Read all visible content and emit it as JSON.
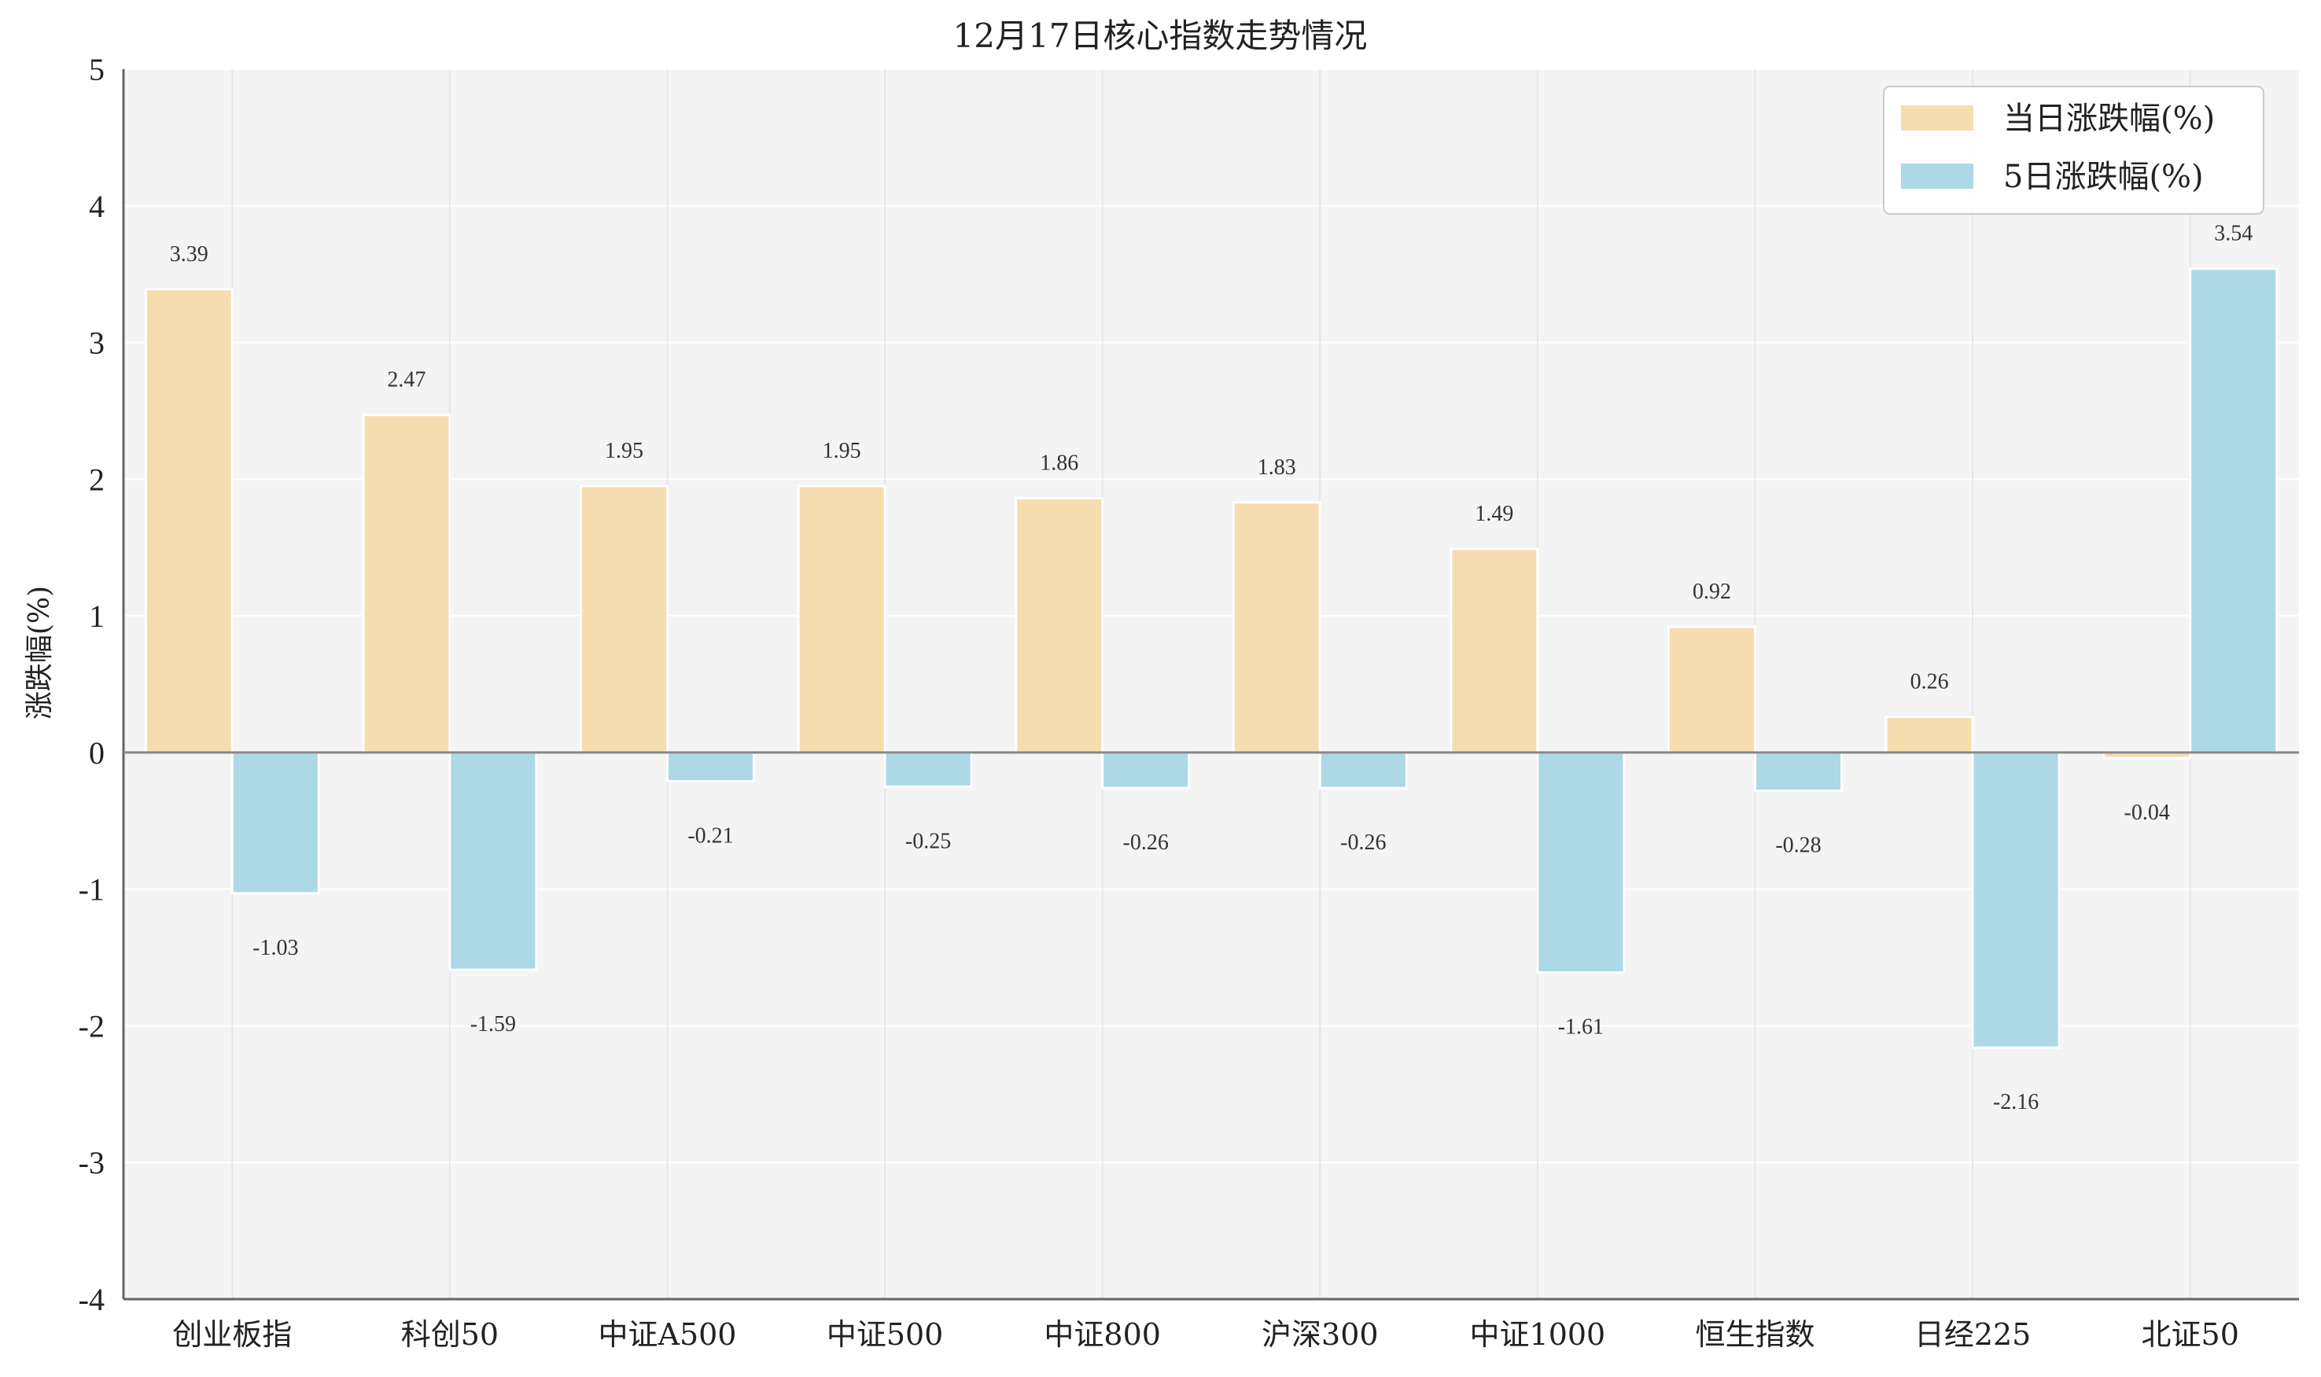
{
  "chart_data": {
    "type": "bar",
    "title": "12月17日核心指数走势情况",
    "ylabel": "涨跌幅(%)",
    "xlabel": "",
    "ylim": [
      -4,
      5
    ],
    "yticks": [
      5,
      4,
      3,
      2,
      1,
      0,
      -1,
      -2,
      -3,
      -4
    ],
    "grid": true,
    "legend_position": "top-right",
    "categories": [
      "创业板指",
      "科创50",
      "中证A500",
      "中证500",
      "中证800",
      "沪深300",
      "中证1000",
      "恒生指数",
      "日经225",
      "北证50"
    ],
    "series": [
      {
        "name": "当日涨跌幅(%)",
        "color": "#f5ddb0",
        "values": [
          3.39,
          2.47,
          1.95,
          1.95,
          1.86,
          1.83,
          1.49,
          0.92,
          0.26,
          -0.04
        ]
      },
      {
        "name": "5日涨跌幅(%)",
        "color": "#add8e6",
        "values": [
          -1.03,
          -1.59,
          -0.21,
          -0.25,
          -0.26,
          -0.26,
          -1.61,
          -0.28,
          -2.16,
          3.54
        ]
      }
    ],
    "data_labels": [
      [
        "3.39",
        "2.47",
        "1.95",
        "1.95",
        "1.86",
        "1.83",
        "1.49",
        "0.92",
        "0.26",
        "-0.04"
      ],
      [
        "-1.03",
        "-1.59",
        "-0.21",
        "-0.25",
        "-0.26",
        "-0.26",
        "-1.61",
        "-0.28",
        "-2.16",
        "3.54"
      ]
    ],
    "colors": {
      "plot_background": "#f4f4f4",
      "grid": "#e6e6e6",
      "axis": "#666666",
      "zero_line": "#888888"
    }
  }
}
